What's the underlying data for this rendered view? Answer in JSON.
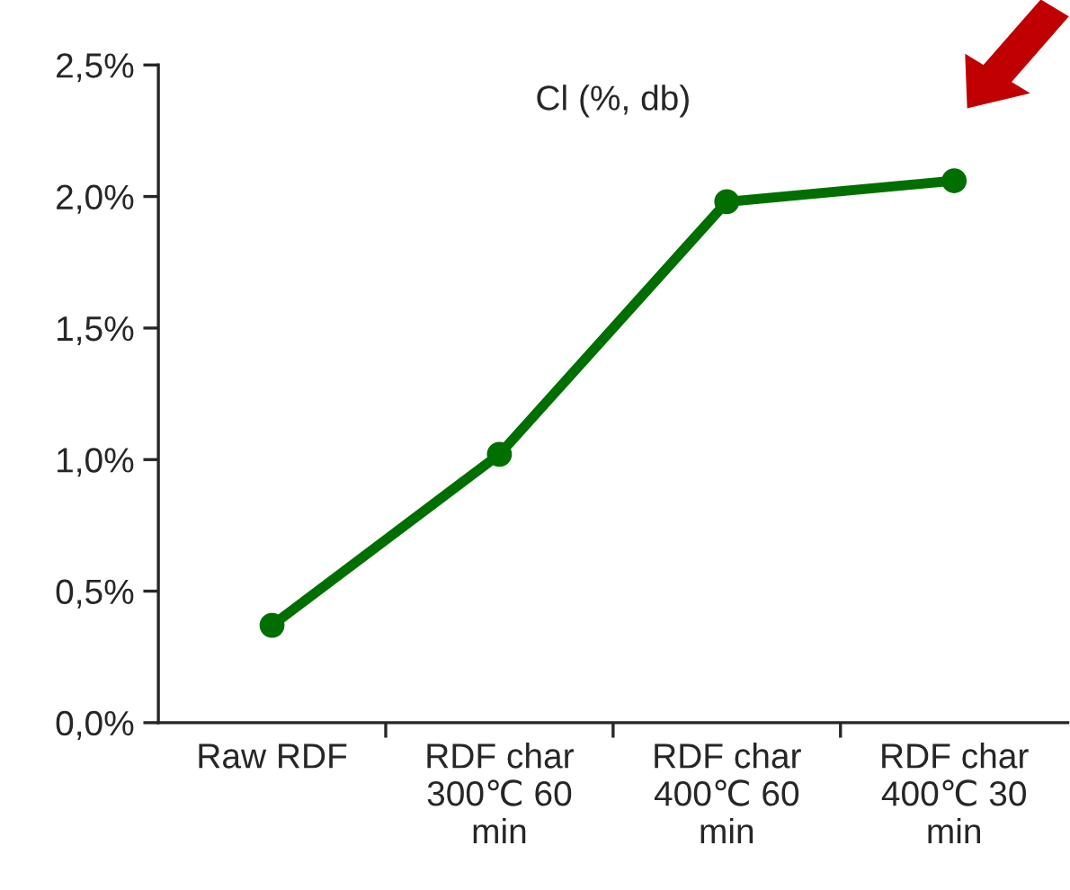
{
  "chart_data": {
    "type": "line",
    "title": "Cl (%, db)",
    "categories": [
      "Raw RDF",
      "RDF char\n300℃ 60\nmin",
      "RDF char\n400℃ 60\nmin",
      "RDF char\n400℃ 30\nmin"
    ],
    "series": [
      {
        "color": "#006f00",
        "values": [
          0.37,
          1.02,
          1.98,
          2.06
        ]
      }
    ],
    "ylim": [
      0,
      2.5
    ],
    "yticks": [
      {
        "value": 0,
        "label": "0,0%"
      },
      {
        "value": 0.5,
        "label": "0,5%"
      },
      {
        "value": 1.0,
        "label": "1,0%"
      },
      {
        "value": 1.5,
        "label": "1,5%"
      },
      {
        "value": 2.0,
        "label": "2,0%"
      },
      {
        "value": 2.5,
        "label": "2,5%"
      }
    ],
    "marker": "circle",
    "line_style": "solid",
    "grid": false,
    "legend": false
  }
}
